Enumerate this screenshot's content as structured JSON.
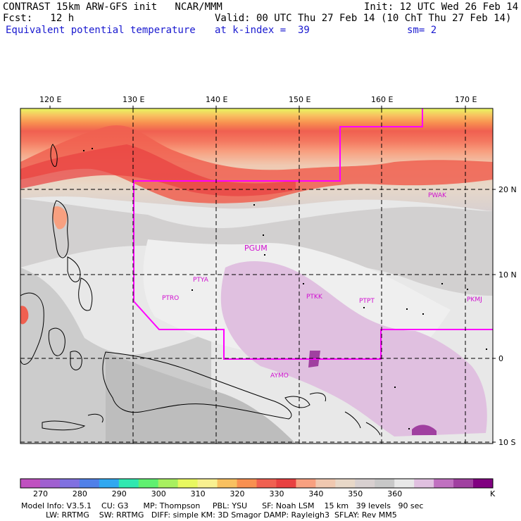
{
  "header": {
    "line1_left": "CONTRAST 15km ARW-GFS init   NCAR/MMM",
    "line1_right": "Init: 12 UTC Wed 26 Feb 14",
    "line2_left": "Fcst:   12 h",
    "line2_right": "Valid: 00 UTC Thu 27 Feb 14 (10 ChT Thu 27 Feb 14)",
    "line3_left": "Equivalent potential temperature",
    "line3_mid": "at k-index =  39",
    "line3_right": "sm= 2"
  },
  "axes": {
    "lon_labels": [
      "120 E",
      "130 E",
      "140 E",
      "150 E",
      "160 E",
      "170 E"
    ],
    "lat_labels": [
      "20 N",
      "10 N",
      "0",
      "10 S"
    ]
  },
  "stations": [
    "PWAK",
    "PGUM",
    "PTYA",
    "PTRO",
    "PTKK",
    "PTPT",
    "PKMJ",
    "AYMO"
  ],
  "colorbar": {
    "colors": [
      "#c050c0",
      "#a060d0",
      "#8070e0",
      "#5080e8",
      "#30a8f0",
      "#30e8b0",
      "#60f070",
      "#a8f060",
      "#e8f860",
      "#f8f090",
      "#f8c060",
      "#f89050",
      "#f06050",
      "#e84040",
      "#f8a080",
      "#f0c8b0",
      "#e8d8c8",
      "#d8d0d0",
      "#c8c8c8",
      "#e8e8e8",
      "#e0c0e0",
      "#c070c0",
      "#a040a0",
      "#800080"
    ],
    "labels": [
      "270",
      "280",
      "290",
      "300",
      "310",
      "320",
      "330",
      "340",
      "350",
      "360"
    ],
    "unit": "K"
  },
  "model_info": {
    "line1": "Model Info: V3.5.1    CU: G3      MP: Thompson     PBL: YSU      SF: Noah LSM    15 km   39 levels   90 sec",
    "line2": "          LW: RRTMG    SW: RRTMG   DIFF: simple KM: 3D Smagor DAMP: Rayleigh3  SFLAY: Rev MM5"
  }
}
